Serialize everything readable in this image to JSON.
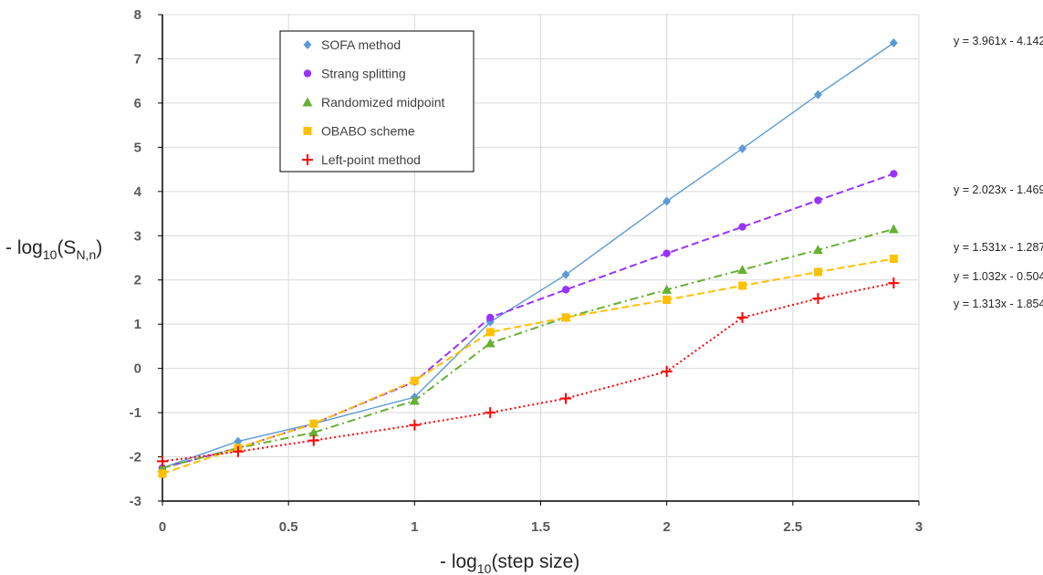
{
  "chart_data": {
    "type": "line",
    "xlabel": "- log10(step size)",
    "ylabel": "- log10(SN,n)",
    "xlim": [
      0,
      3
    ],
    "ylim": [
      -3,
      8
    ],
    "xticks": [
      0,
      0.5,
      1,
      1.5,
      2,
      2.5,
      3
    ],
    "xtick_labels": [
      "0",
      "0.5",
      "1",
      "1.5",
      "2",
      "2.5",
      "3"
    ],
    "yticks": [
      -3,
      -2,
      -1,
      0,
      1,
      2,
      3,
      4,
      5,
      6,
      7,
      8
    ],
    "ytick_labels": [
      "-3",
      "-2",
      "-1",
      "0",
      "1",
      "2",
      "3",
      "4",
      "5",
      "6",
      "7",
      "8"
    ],
    "grid": true,
    "legend_position": "top-left",
    "series": [
      {
        "name": "SOFA method",
        "color": "#5B9BD5",
        "marker": "diamond",
        "dash": "solid",
        "x": [
          0,
          0.3,
          0.6,
          1.0,
          1.3,
          1.6,
          2.0,
          2.3,
          2.6,
          2.9
        ],
        "y": [
          -2.25,
          -1.65,
          -1.25,
          -0.65,
          1.05,
          2.12,
          3.78,
          4.97,
          6.19,
          7.36
        ],
        "trendline": "y = 3.961x - 4.142"
      },
      {
        "name": "Strang splitting",
        "color": "#9933FF",
        "marker": "circle",
        "dash": "dashed",
        "x": [
          0,
          0.3,
          0.6,
          1.0,
          1.3,
          1.6,
          2.0,
          2.3,
          2.6,
          2.9
        ],
        "y": [
          -2.25,
          -1.8,
          -1.25,
          -0.3,
          1.15,
          1.78,
          2.6,
          3.2,
          3.8,
          4.4
        ],
        "trendline": "y = 2.023x - 1.469"
      },
      {
        "name": "Randomized midpoint",
        "color": "#66B032",
        "marker": "triangle",
        "dash": "dashdot",
        "x": [
          0,
          0.3,
          0.6,
          1.0,
          1.3,
          1.6,
          2.0,
          2.3,
          2.6,
          2.9
        ],
        "y": [
          -2.25,
          -1.8,
          -1.45,
          -0.73,
          0.57,
          1.15,
          1.78,
          2.23,
          2.68,
          3.15
        ],
        "trendline": "y = 1.531x - 1.287"
      },
      {
        "name": "OBABO scheme",
        "color": "#FFC000",
        "marker": "square",
        "dash": "dashed",
        "x": [
          0,
          0.3,
          0.6,
          1.0,
          1.3,
          1.6,
          2.0,
          2.3,
          2.6,
          2.9
        ],
        "y": [
          -2.38,
          -1.8,
          -1.25,
          -0.28,
          0.82,
          1.15,
          1.55,
          1.87,
          2.18,
          2.48
        ],
        "trendline": "y = 1.032x - 0.504"
      },
      {
        "name": "Left-point method",
        "color": "#FF0000",
        "marker": "plus",
        "dash": "dotted",
        "x": [
          0,
          0.3,
          0.6,
          1.0,
          1.3,
          1.6,
          2.0,
          2.3,
          2.6,
          2.9
        ],
        "y": [
          -2.1,
          -1.88,
          -1.63,
          -1.28,
          -1.0,
          -0.68,
          -0.07,
          1.15,
          1.58,
          1.93
        ],
        "trendline": "y = 1.313x - 1.854"
      }
    ]
  }
}
